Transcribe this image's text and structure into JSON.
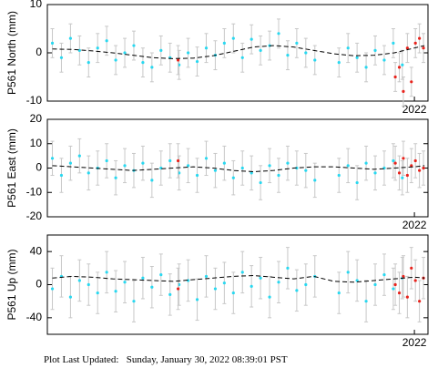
{
  "chart_data": [
    {
      "type": "scatter",
      "ylabel": "P561 North (mm)",
      "xlim": [
        2014.7,
        2022.27
      ],
      "xticks": [
        2022
      ],
      "ylim": [
        -10,
        10
      ],
      "yticks": [
        -10,
        0,
        10
      ],
      "series": [
        {
          "color": "#29d8f0",
          "error": 3,
          "x": [
            2014.8,
            2014.98,
            2015.16,
            2015.34,
            2015.52,
            2015.7,
            2015.88,
            2016.06,
            2016.24,
            2016.42,
            2016.6,
            2016.78,
            2016.96,
            2017.14,
            2017.32,
            2017.5,
            2017.68,
            2017.86,
            2018.04,
            2018.22,
            2018.4,
            2018.58,
            2018.76,
            2018.94,
            2019.12,
            2019.3,
            2019.48,
            2019.66,
            2019.84,
            2020.02,
            2020.5,
            2020.68,
            2020.86,
            2021.04,
            2021.22,
            2021.4,
            2021.58,
            2021.76
          ],
          "values": [
            2,
            -1,
            3,
            0.5,
            -2,
            1,
            2.5,
            -1.5,
            0,
            1.5,
            -2,
            -3,
            0.5,
            -1,
            -2.5,
            0,
            -1.8,
            1,
            -0.5,
            2,
            3,
            -1,
            2.8,
            0.5,
            1.5,
            4,
            -0.5,
            2,
            0,
            -1.5,
            -2,
            1,
            -1,
            -3,
            0.5,
            -1.5,
            2,
            -2.5
          ]
        },
        {
          "color": "#e8231c",
          "error": 3,
          "x": [
            2017.3,
            2021.62,
            2021.7,
            2021.78,
            2021.86,
            2021.94,
            2022.02,
            2022.1,
            2022.18
          ],
          "values": [
            -1.5,
            -5,
            -3,
            -8,
            1,
            -6,
            2,
            3,
            1
          ]
        },
        {
          "type": "line",
          "color": "#000000",
          "dashed": true,
          "x": [
            2014.8,
            2015.2,
            2015.6,
            2016.0,
            2016.4,
            2016.8,
            2017.2,
            2017.6,
            2018.0,
            2018.4,
            2018.8,
            2019.2,
            2019.6,
            2020.0,
            2020.4,
            2020.8,
            2021.2,
            2021.6,
            2022.0,
            2022.2
          ],
          "values": [
            0.8,
            0.7,
            0.4,
            0,
            -0.5,
            -1,
            -1.2,
            -1.1,
            -0.6,
            0.3,
            1.2,
            1.5,
            1.2,
            0.5,
            -0.2,
            -0.6,
            -0.5,
            0,
            1,
            1.5
          ]
        }
      ]
    },
    {
      "type": "scatter",
      "ylabel": "P561 East (mm)",
      "xlim": [
        2014.7,
        2022.27
      ],
      "xticks": [
        2022
      ],
      "ylim": [
        -20,
        20
      ],
      "yticks": [
        -20,
        -10,
        0,
        10,
        20
      ],
      "series": [
        {
          "color": "#29d8f0",
          "error": 7,
          "x": [
            2014.8,
            2014.98,
            2015.16,
            2015.34,
            2015.52,
            2015.7,
            2015.88,
            2016.06,
            2016.24,
            2016.42,
            2016.6,
            2016.78,
            2016.96,
            2017.14,
            2017.32,
            2017.5,
            2017.68,
            2017.86,
            2018.04,
            2018.22,
            2018.4,
            2018.58,
            2018.76,
            2018.94,
            2019.12,
            2019.3,
            2019.48,
            2019.66,
            2019.84,
            2020.02,
            2020.5,
            2020.68,
            2020.86,
            2021.04,
            2021.22,
            2021.4,
            2021.58,
            2021.76
          ],
          "values": [
            4,
            -3,
            2,
            5,
            -2,
            0,
            3,
            -4,
            1,
            -1,
            2,
            -5,
            0,
            3,
            -2,
            1,
            -3,
            4,
            -1,
            2,
            -4,
            0,
            -2,
            -6,
            1,
            -3,
            2,
            0,
            -1,
            -5,
            -3,
            1,
            -6,
            2,
            -2,
            0,
            3,
            -4
          ]
        },
        {
          "color": "#e8231c",
          "error": 7,
          "x": [
            2017.3,
            2021.62,
            2021.7,
            2021.78,
            2021.86,
            2021.94,
            2022.02,
            2022.1,
            2022.18
          ],
          "values": [
            3,
            2,
            -2,
            4,
            -3,
            1,
            3,
            -1,
            0
          ]
        },
        {
          "type": "line",
          "color": "#000000",
          "dashed": true,
          "x": [
            2014.8,
            2015.2,
            2015.6,
            2016.0,
            2016.4,
            2016.8,
            2017.2,
            2017.6,
            2018.0,
            2018.4,
            2018.8,
            2019.2,
            2019.6,
            2020.0,
            2020.4,
            2020.8,
            2021.2,
            2021.6,
            2022.0,
            2022.2
          ],
          "values": [
            1,
            0.5,
            0,
            -0.5,
            -1,
            -0.5,
            0,
            0.5,
            0,
            -1,
            -1.5,
            -1,
            0,
            0.5,
            0.5,
            0,
            -0.5,
            0,
            0.5,
            1
          ]
        }
      ]
    },
    {
      "type": "scatter",
      "ylabel": "P561 Up (mm)",
      "xlim": [
        2014.7,
        2022.27
      ],
      "xticks": [
        2022
      ],
      "ylim": [
        -60,
        60
      ],
      "yticks": [
        -40,
        0,
        40
      ],
      "series": [
        {
          "color": "#29d8f0",
          "error": 25,
          "x": [
            2014.8,
            2014.98,
            2015.16,
            2015.34,
            2015.52,
            2015.7,
            2015.88,
            2016.06,
            2016.24,
            2016.42,
            2016.6,
            2016.78,
            2016.96,
            2017.14,
            2017.32,
            2017.5,
            2017.68,
            2017.86,
            2018.04,
            2018.22,
            2018.4,
            2018.58,
            2018.76,
            2018.94,
            2019.12,
            2019.3,
            2019.48,
            2019.66,
            2019.84,
            2020.02,
            2020.5,
            2020.68,
            2020.86,
            2021.04,
            2021.22,
            2021.4,
            2021.58,
            2021.76
          ],
          "values": [
            -5,
            10,
            -15,
            5,
            0,
            -10,
            15,
            -8,
            3,
            -20,
            8,
            -3,
            12,
            -12,
            0,
            5,
            -18,
            10,
            -5,
            2,
            -10,
            15,
            -2,
            8,
            -15,
            3,
            20,
            -7,
            0,
            10,
            -10,
            15,
            5,
            -20,
            0,
            12,
            -5,
            8
          ]
        },
        {
          "color": "#e8231c",
          "error": 25,
          "x": [
            2017.3,
            2021.62,
            2021.7,
            2021.78,
            2021.86,
            2021.94,
            2022.02,
            2022.1,
            2022.18
          ],
          "values": [
            -5,
            0,
            -10,
            10,
            -15,
            20,
            5,
            -20,
            8
          ]
        },
        {
          "type": "line",
          "color": "#000000",
          "dashed": true,
          "x": [
            2014.8,
            2015.2,
            2015.6,
            2016.0,
            2016.4,
            2016.8,
            2017.2,
            2017.6,
            2018.0,
            2018.4,
            2018.8,
            2019.2,
            2019.6,
            2020.0,
            2020.4,
            2020.8,
            2021.2,
            2021.6,
            2022.0,
            2022.2
          ],
          "values": [
            8,
            10,
            9,
            7,
            6,
            5,
            4,
            6,
            8,
            10,
            11,
            9,
            7,
            10,
            4,
            3,
            5,
            7,
            9,
            8
          ]
        }
      ]
    }
  ],
  "footer": "Plot Last Updated:   Sunday, January 30, 2022 08:39:01 PST"
}
